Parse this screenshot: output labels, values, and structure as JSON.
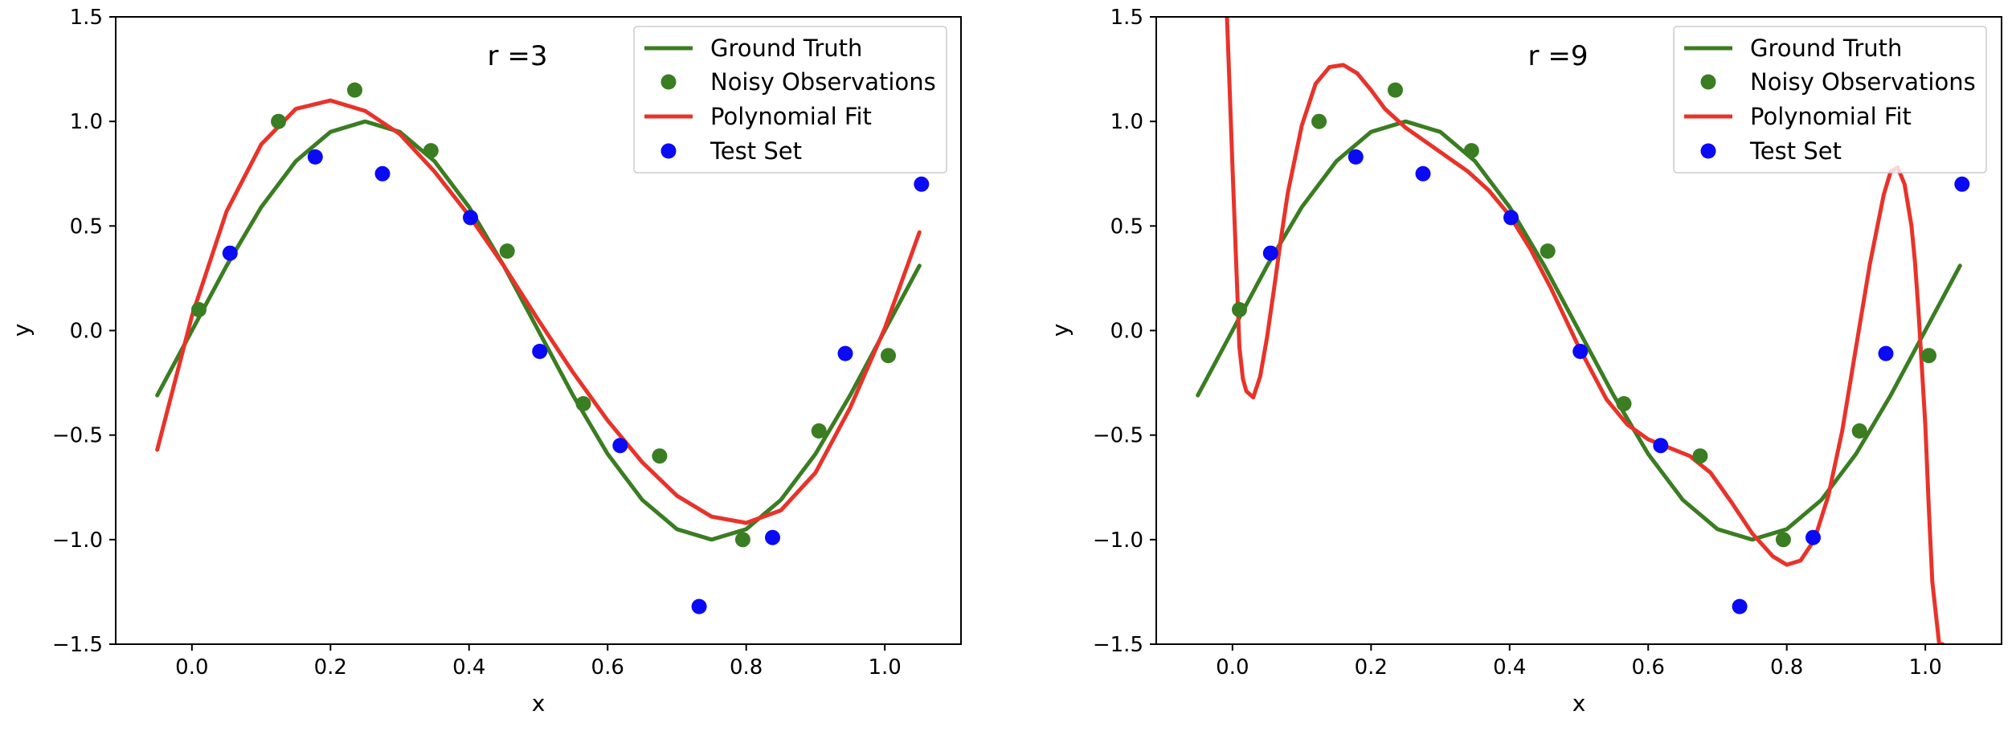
{
  "colors": {
    "ground_truth": "#3a7d22",
    "noisy": "#3a7d22",
    "fit": "#e8332a",
    "test": "#0a0af5"
  },
  "chart_data": [
    {
      "type": "scatter",
      "annotation": "r =3",
      "xlabel": "x",
      "ylabel": "y",
      "xlim": [
        -0.11,
        1.11
      ],
      "ylim": [
        -1.5,
        1.5
      ],
      "xticks": [
        "0.0",
        "0.2",
        "0.4",
        "0.6",
        "0.8",
        "1.0"
      ],
      "yticks": [
        "−1.5",
        "−1.0",
        "−0.5",
        "0.0",
        "0.5",
        "1.0",
        "1.5"
      ],
      "legend": {
        "position": "top-right",
        "entries": [
          "Ground Truth",
          "Noisy Observations",
          "Polynomial Fit",
          "Test Set"
        ]
      },
      "series": [
        {
          "name": "Ground Truth",
          "kind": "line",
          "x": [
            -0.05,
            0.0,
            0.05,
            0.1,
            0.15,
            0.2,
            0.25,
            0.3,
            0.35,
            0.4,
            0.45,
            0.5,
            0.55,
            0.6,
            0.65,
            0.7,
            0.75,
            0.8,
            0.85,
            0.9,
            0.95,
            1.0,
            1.05
          ],
          "y": [
            -0.31,
            0.0,
            0.31,
            0.59,
            0.81,
            0.95,
            1.0,
            0.95,
            0.81,
            0.59,
            0.31,
            0.0,
            -0.31,
            -0.59,
            -0.81,
            -0.95,
            -1.0,
            -0.95,
            -0.81,
            -0.59,
            -0.31,
            0.0,
            0.31
          ]
        },
        {
          "name": "Noisy Observations",
          "kind": "points",
          "x": [
            0.01,
            0.125,
            0.235,
            0.345,
            0.455,
            0.565,
            0.675,
            0.795,
            0.905,
            1.005
          ],
          "y": [
            0.1,
            1.0,
            1.15,
            0.86,
            0.38,
            -0.35,
            -0.6,
            -1.0,
            -0.48,
            -0.12
          ]
        },
        {
          "name": "Polynomial Fit",
          "kind": "line",
          "x": [
            -0.05,
            0.0,
            0.05,
            0.1,
            0.15,
            0.2,
            0.25,
            0.3,
            0.35,
            0.4,
            0.45,
            0.5,
            0.55,
            0.6,
            0.65,
            0.7,
            0.75,
            0.8,
            0.85,
            0.9,
            0.95,
            1.0,
            1.05
          ],
          "y": [
            -0.57,
            0.07,
            0.57,
            0.89,
            1.06,
            1.1,
            1.05,
            0.94,
            0.76,
            0.55,
            0.31,
            0.05,
            -0.2,
            -0.43,
            -0.63,
            -0.79,
            -0.89,
            -0.92,
            -0.86,
            -0.68,
            -0.37,
            0.01,
            0.47
          ]
        },
        {
          "name": "Test Set",
          "kind": "points",
          "x": [
            0.055,
            0.178,
            0.275,
            0.402,
            0.502,
            0.618,
            0.732,
            0.838,
            0.943,
            1.053
          ],
          "y": [
            0.37,
            0.83,
            0.75,
            0.54,
            -0.1,
            -0.55,
            -1.32,
            -0.99,
            -0.11,
            0.7
          ]
        }
      ]
    },
    {
      "type": "scatter",
      "annotation": "r =9",
      "xlabel": "x",
      "ylabel": "y",
      "xlim": [
        -0.11,
        1.11
      ],
      "ylim": [
        -1.5,
        1.5
      ],
      "xticks": [
        "0.0",
        "0.2",
        "0.4",
        "0.6",
        "0.8",
        "1.0"
      ],
      "yticks": [
        "−1.5",
        "−1.0",
        "−0.5",
        "0.0",
        "0.5",
        "1.0",
        "1.5"
      ],
      "legend": {
        "position": "top-right",
        "entries": [
          "Ground Truth",
          "Noisy Observations",
          "Polynomial Fit",
          "Test Set"
        ]
      },
      "series": [
        {
          "name": "Ground Truth",
          "kind": "line",
          "x": [
            -0.05,
            0.0,
            0.05,
            0.1,
            0.15,
            0.2,
            0.25,
            0.3,
            0.35,
            0.4,
            0.45,
            0.5,
            0.55,
            0.6,
            0.65,
            0.7,
            0.75,
            0.8,
            0.85,
            0.9,
            0.95,
            1.0,
            1.05
          ],
          "y": [
            -0.31,
            0.0,
            0.31,
            0.59,
            0.81,
            0.95,
            1.0,
            0.95,
            0.81,
            0.59,
            0.31,
            0.0,
            -0.31,
            -0.59,
            -0.81,
            -0.95,
            -1.0,
            -0.95,
            -0.81,
            -0.59,
            -0.31,
            0.0,
            0.31
          ]
        },
        {
          "name": "Noisy Observations",
          "kind": "points",
          "x": [
            0.01,
            0.125,
            0.235,
            0.345,
            0.455,
            0.565,
            0.675,
            0.795,
            0.905,
            1.005
          ],
          "y": [
            0.1,
            1.0,
            1.15,
            0.86,
            0.38,
            -0.35,
            -0.6,
            -1.0,
            -0.48,
            -0.12
          ]
        },
        {
          "name": "Polynomial Fit",
          "kind": "line",
          "x": [
            -0.008,
            -0.004,
            0.0,
            0.005,
            0.01,
            0.015,
            0.02,
            0.03,
            0.04,
            0.05,
            0.06,
            0.07,
            0.08,
            0.1,
            0.12,
            0.14,
            0.16,
            0.18,
            0.2,
            0.22,
            0.25,
            0.28,
            0.31,
            0.34,
            0.37,
            0.4,
            0.43,
            0.46,
            0.5,
            0.54,
            0.57,
            0.6,
            0.63,
            0.66,
            0.69,
            0.72,
            0.75,
            0.78,
            0.8,
            0.82,
            0.84,
            0.86,
            0.88,
            0.9,
            0.92,
            0.94,
            0.95,
            0.96,
            0.97,
            0.98,
            0.985,
            0.99,
            1.0,
            1.005,
            1.01,
            1.02,
            1.025
          ],
          "y": [
            1.5,
            1.15,
            0.78,
            0.35,
            -0.08,
            -0.23,
            -0.29,
            -0.32,
            -0.22,
            -0.03,
            0.2,
            0.44,
            0.66,
            0.98,
            1.18,
            1.26,
            1.27,
            1.23,
            1.15,
            1.06,
            0.97,
            0.9,
            0.83,
            0.76,
            0.67,
            0.55,
            0.39,
            0.2,
            -0.08,
            -0.33,
            -0.45,
            -0.52,
            -0.56,
            -0.6,
            -0.68,
            -0.82,
            -0.97,
            -1.08,
            -1.12,
            -1.1,
            -1.0,
            -0.79,
            -0.48,
            -0.08,
            0.32,
            0.65,
            0.76,
            0.78,
            0.7,
            0.5,
            0.33,
            0.1,
            -0.45,
            -0.85,
            -1.2,
            -1.5,
            -1.5
          ]
        },
        {
          "name": "Test Set",
          "kind": "points",
          "x": [
            0.055,
            0.178,
            0.275,
            0.402,
            0.502,
            0.618,
            0.732,
            0.838,
            0.943,
            1.053
          ],
          "y": [
            0.37,
            0.83,
            0.75,
            0.54,
            -0.1,
            -0.55,
            -1.32,
            -0.99,
            -0.11,
            0.7
          ]
        }
      ]
    }
  ]
}
